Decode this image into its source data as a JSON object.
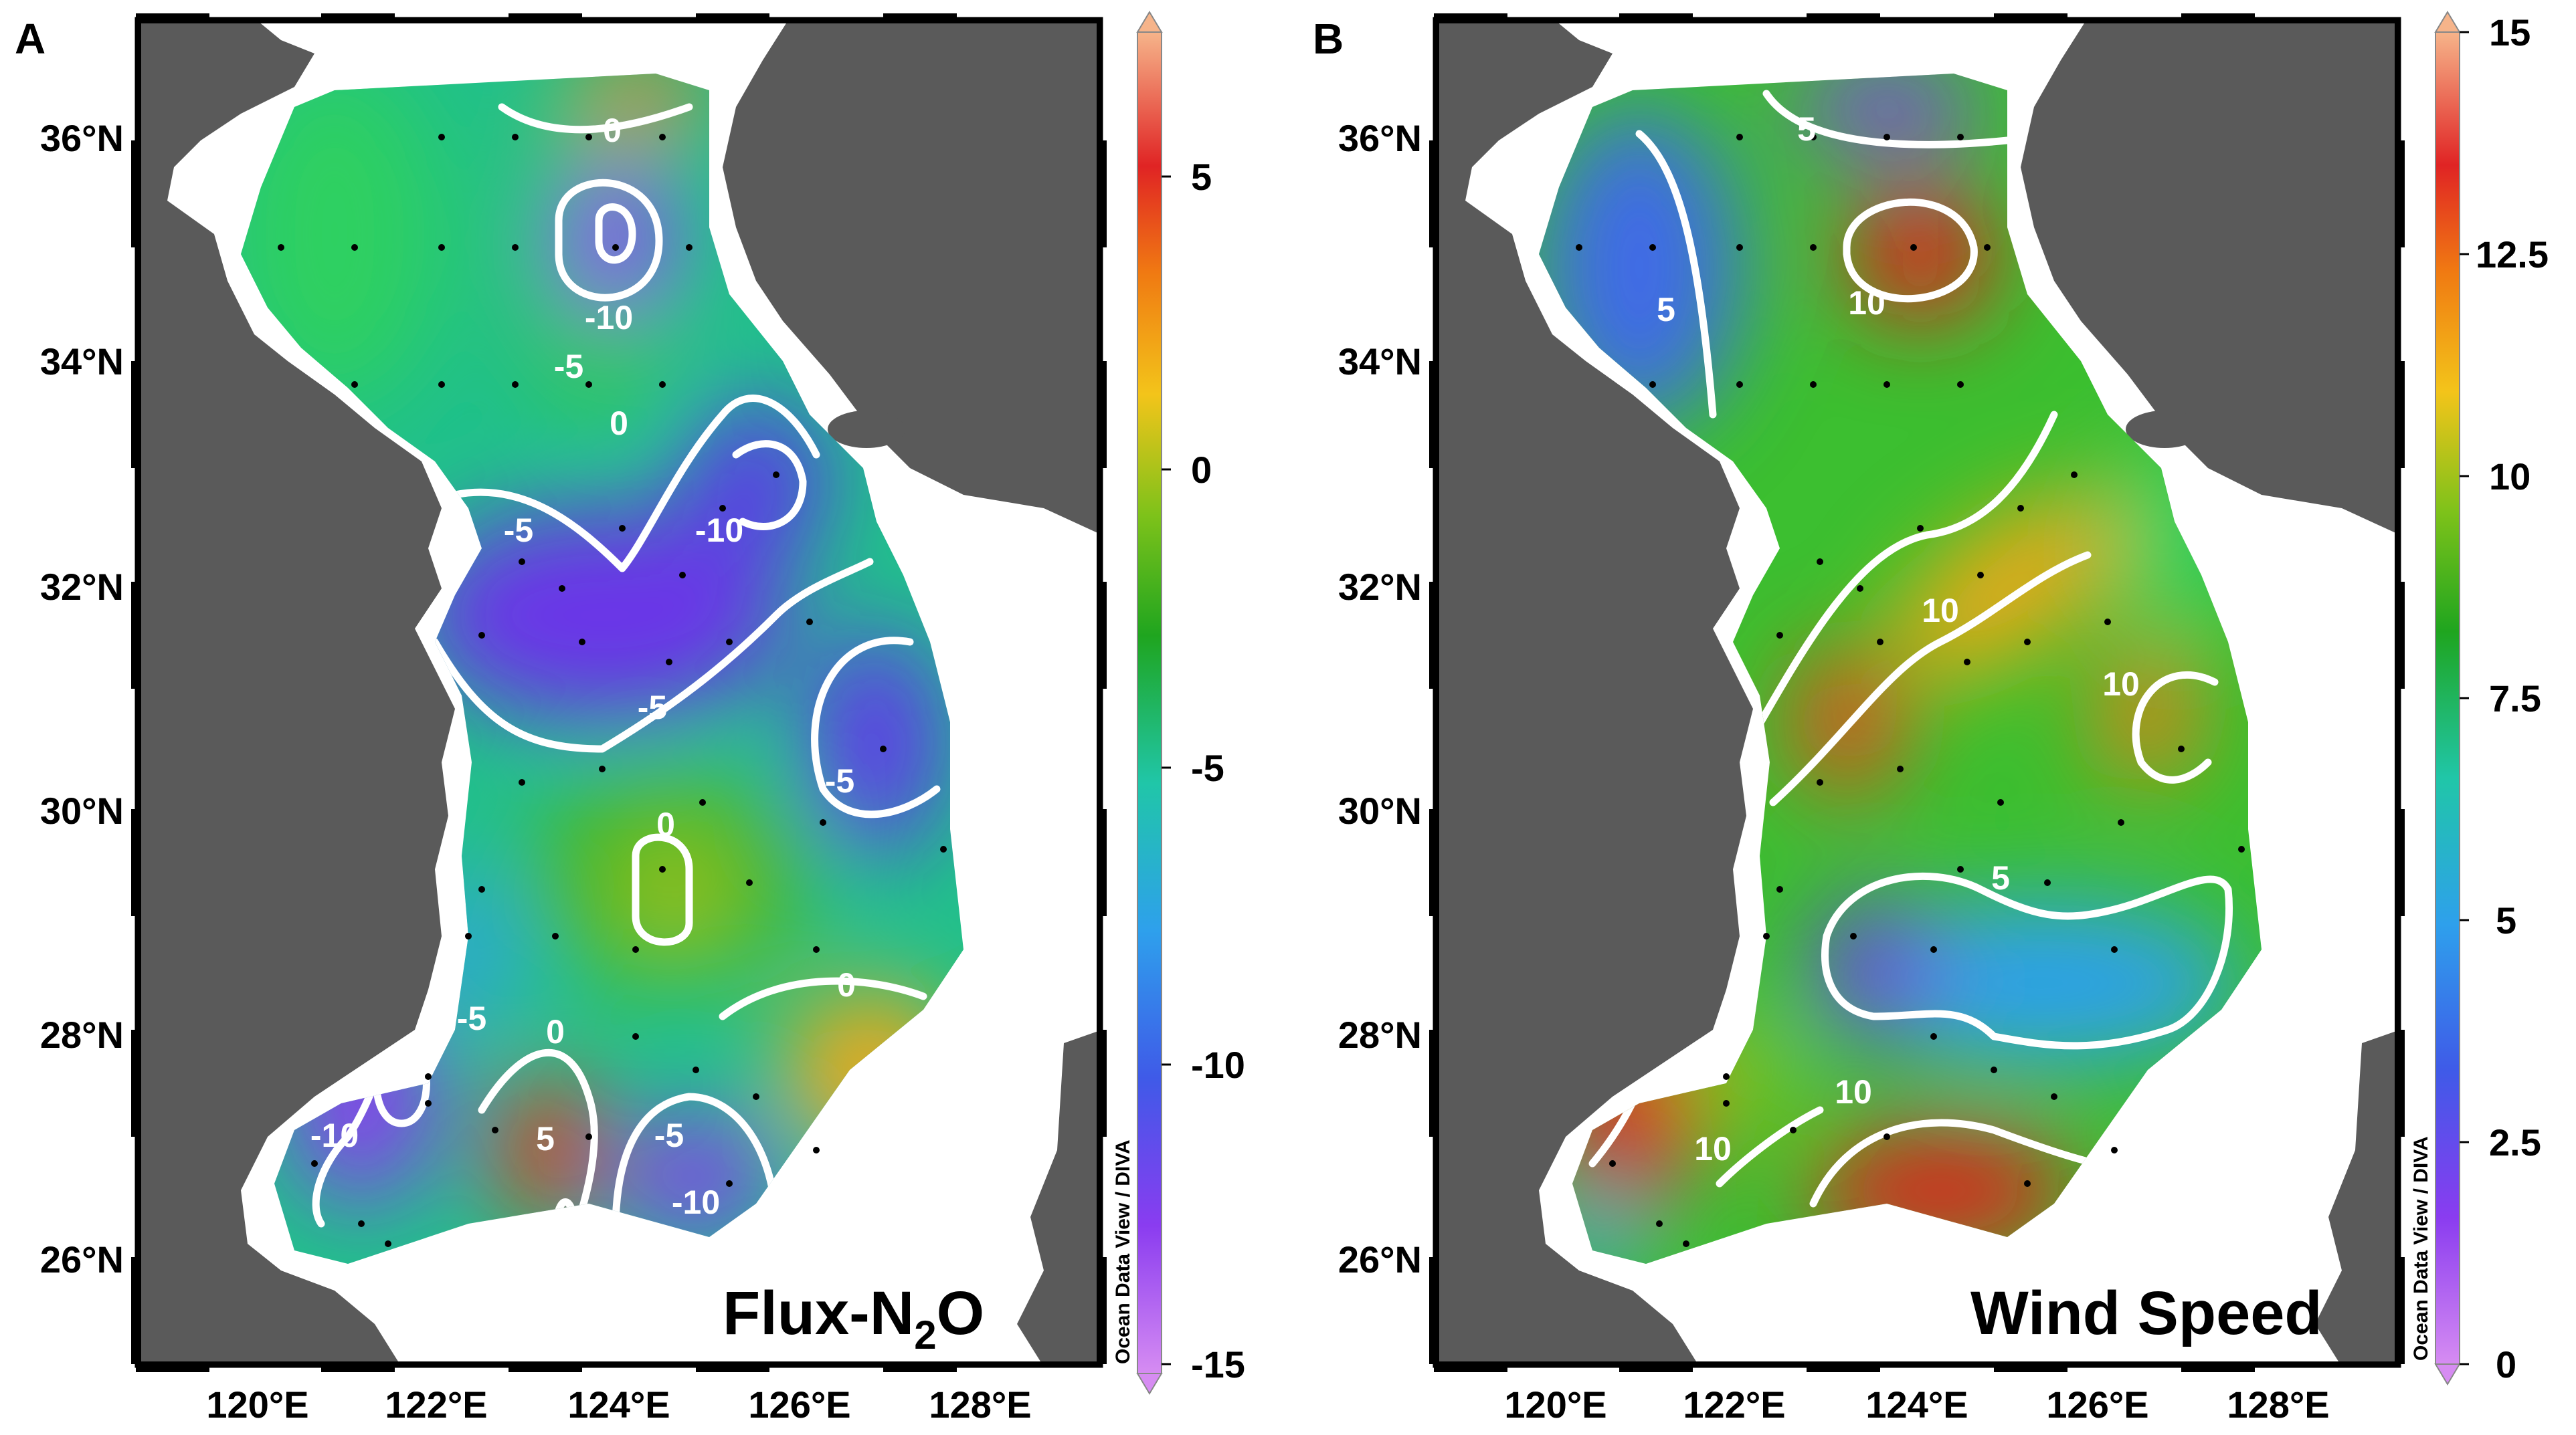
{
  "panels": [
    {
      "letter": "A",
      "title_main": "Flux-N",
      "title_sub": "2",
      "title_end": "O",
      "colorbar_credit": "Ocean Data View / DIVA",
      "colorbar_ticks": [
        "5",
        "0",
        "-5",
        "-10",
        "-15"
      ],
      "colorbar_range": [
        -15,
        7.5
      ],
      "lat_labels": [
        "36°N",
        "34°N",
        "32°N",
        "30°N",
        "28°N",
        "26°N"
      ],
      "lon_labels": [
        "120°E",
        "122°E",
        "124°E",
        "126°E",
        "128°E"
      ],
      "contour_labels": [
        "0",
        "-10",
        "-5",
        "0",
        "-5",
        "-10",
        "-5",
        "-5",
        "0",
        "0",
        "-5",
        "0",
        "-10",
        "5",
        "-5",
        "-10"
      ]
    },
    {
      "letter": "B",
      "title_main": "Wind Speed",
      "colorbar_credit": "Ocean Data View / DIVA",
      "colorbar_ticks": [
        "15",
        "12.5",
        "10",
        "7.5",
        "5",
        "2.5",
        "0"
      ],
      "colorbar_range": [
        0,
        15
      ],
      "lat_labels": [
        "36°N",
        "34°N",
        "32°N",
        "30°N",
        "28°N",
        "26°N"
      ],
      "lon_labels": [
        "120°E",
        "122°E",
        "124°E",
        "126°E",
        "128°E"
      ],
      "contour_labels": [
        "5",
        "5",
        "10",
        "10",
        "10",
        "5",
        "10",
        "10"
      ]
    }
  ],
  "colors": {
    "land": "#5a5a5a",
    "contour": "#ffffff",
    "scale_low": "#d68cf2",
    "scale_mid": "#1fa51f",
    "scale_high": "#f6b48a"
  }
}
